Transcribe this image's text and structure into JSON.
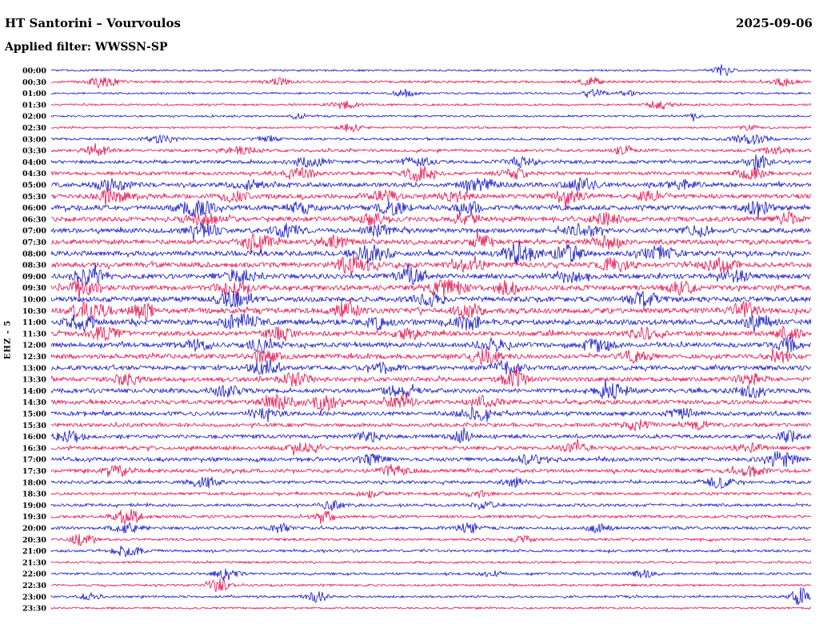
{
  "header": {
    "station_title": "HT Santorini – Vourvoulos",
    "date": "2025-09-06",
    "filter_label": "Applied filter: WWSSN-SP"
  },
  "axis": {
    "ylabel": "EHZ - 5"
  },
  "chart_data": {
    "type": "line",
    "subtype": "helicorder-seismogram",
    "title": "HT Santorini – Vourvoulos",
    "date": "2025-09-06",
    "filter": "WWSSN-SP",
    "row_interval_minutes": 30,
    "legend": "none",
    "grid": false,
    "colors": {
      "blue": "#1414c8",
      "red": "#e8104c",
      "label": "#000000"
    },
    "bursts_format": "[position_fraction_0to1, amplitude_px, sigma_px]",
    "rows": [
      {
        "time": "00:00",
        "color": "blue",
        "base": 1.1,
        "bursts": [
          [
            0.885,
            7,
            8
          ]
        ]
      },
      {
        "time": "00:30",
        "color": "red",
        "base": 1.4,
        "bursts": [
          [
            0.07,
            5,
            14
          ],
          [
            0.3,
            4,
            10
          ],
          [
            0.71,
            7,
            8
          ],
          [
            0.965,
            5,
            10
          ]
        ]
      },
      {
        "time": "01:00",
        "color": "blue",
        "base": 1.1,
        "bursts": [
          [
            0.465,
            5,
            9
          ],
          [
            0.715,
            4,
            10
          ],
          [
            0.76,
            3,
            8
          ]
        ]
      },
      {
        "time": "01:30",
        "color": "red",
        "base": 1.2,
        "bursts": [
          [
            0.385,
            5,
            12
          ],
          [
            0.8,
            5,
            10
          ]
        ]
      },
      {
        "time": "02:00",
        "color": "blue",
        "base": 1.1,
        "bursts": [
          [
            0.325,
            5,
            6
          ],
          [
            0.845,
            4,
            6
          ]
        ]
      },
      {
        "time": "02:30",
        "color": "red",
        "base": 1.1,
        "bursts": [
          [
            0.395,
            5,
            10
          ],
          [
            0.92,
            3,
            8
          ]
        ]
      },
      {
        "time": "03:00",
        "color": "blue",
        "base": 1.4,
        "bursts": [
          [
            0.145,
            4,
            14
          ],
          [
            0.285,
            4,
            9
          ],
          [
            0.92,
            6,
            16
          ]
        ]
      },
      {
        "time": "03:30",
        "color": "red",
        "base": 1.7,
        "bursts": [
          [
            0.06,
            6,
            12
          ],
          [
            0.25,
            4,
            14
          ],
          [
            0.755,
            6,
            9
          ],
          [
            0.95,
            4,
            10
          ]
        ]
      },
      {
        "time": "04:00",
        "color": "blue",
        "base": 2.0,
        "bursts": [
          [
            0.34,
            5,
            16
          ],
          [
            0.48,
            6,
            13
          ],
          [
            0.62,
            5,
            13
          ],
          [
            0.93,
            8,
            10
          ]
        ]
      },
      {
        "time": "04:30",
        "color": "red",
        "base": 2.0,
        "bursts": [
          [
            0.33,
            6,
            13
          ],
          [
            0.485,
            9,
            12
          ],
          [
            0.61,
            6,
            13
          ],
          [
            0.92,
            7,
            12
          ]
        ]
      },
      {
        "time": "05:00",
        "color": "blue",
        "base": 2.6,
        "bursts": [
          [
            0.08,
            6,
            16
          ],
          [
            0.26,
            5,
            13
          ],
          [
            0.565,
            7,
            15
          ],
          [
            0.7,
            7,
            13
          ],
          [
            0.83,
            5,
            13
          ]
        ]
      },
      {
        "time": "05:30",
        "color": "red",
        "base": 2.6,
        "bursts": [
          [
            0.08,
            7,
            15
          ],
          [
            0.24,
            5,
            13
          ],
          [
            0.44,
            6,
            13
          ],
          [
            0.53,
            7,
            12
          ],
          [
            0.68,
            8,
            13
          ],
          [
            0.79,
            6,
            12
          ]
        ]
      },
      {
        "time": "06:00",
        "color": "blue",
        "base": 2.8,
        "bursts": [
          [
            0.19,
            9,
            15
          ],
          [
            0.33,
            6,
            13
          ],
          [
            0.45,
            7,
            13
          ],
          [
            0.55,
            6,
            12
          ],
          [
            0.93,
            7,
            13
          ]
        ]
      },
      {
        "time": "06:30",
        "color": "red",
        "base": 2.8,
        "bursts": [
          [
            0.2,
            6,
            15
          ],
          [
            0.42,
            7,
            13
          ],
          [
            0.55,
            5,
            12
          ],
          [
            0.73,
            6,
            13
          ],
          [
            0.97,
            7,
            10
          ]
        ]
      },
      {
        "time": "07:00",
        "color": "blue",
        "base": 2.8,
        "bursts": [
          [
            0.2,
            8,
            13
          ],
          [
            0.31,
            7,
            13
          ],
          [
            0.43,
            6,
            12
          ],
          [
            0.7,
            7,
            13
          ],
          [
            0.85,
            6,
            12
          ]
        ]
      },
      {
        "time": "07:30",
        "color": "red",
        "base": 2.8,
        "bursts": [
          [
            0.27,
            9,
            13
          ],
          [
            0.37,
            7,
            13
          ],
          [
            0.57,
            6,
            12
          ],
          [
            0.73,
            7,
            13
          ]
        ]
      },
      {
        "time": "08:00",
        "color": "blue",
        "base": 3.0,
        "bursts": [
          [
            0.42,
            10,
            16
          ],
          [
            0.615,
            12,
            15
          ],
          [
            0.68,
            9,
            12
          ],
          [
            0.8,
            8,
            15
          ]
        ]
      },
      {
        "time": "08:30",
        "color": "red",
        "base": 3.0,
        "bursts": [
          [
            0.4,
            12,
            15
          ],
          [
            0.55,
            7,
            13
          ],
          [
            0.74,
            8,
            13
          ],
          [
            0.88,
            9,
            13
          ]
        ]
      },
      {
        "time": "09:00",
        "color": "blue",
        "base": 3.0,
        "bursts": [
          [
            0.05,
            8,
            15
          ],
          [
            0.25,
            7,
            13
          ],
          [
            0.47,
            9,
            13
          ],
          [
            0.68,
            7,
            13
          ],
          [
            0.9,
            7,
            12
          ]
        ]
      },
      {
        "time": "09:30",
        "color": "red",
        "base": 3.0,
        "bursts": [
          [
            0.04,
            8,
            13
          ],
          [
            0.24,
            8,
            13
          ],
          [
            0.52,
            10,
            15
          ],
          [
            0.6,
            8,
            12
          ],
          [
            0.83,
            7,
            12
          ]
        ]
      },
      {
        "time": "10:00",
        "color": "blue",
        "base": 3.0,
        "bursts": [
          [
            0.24,
            8,
            15
          ],
          [
            0.5,
            7,
            13
          ],
          [
            0.78,
            8,
            13
          ]
        ]
      },
      {
        "time": "10:30",
        "color": "red",
        "base": 3.2,
        "bursts": [
          [
            0.05,
            9,
            16
          ],
          [
            0.12,
            8,
            13
          ],
          [
            0.39,
            7,
            13
          ],
          [
            0.55,
            6,
            13
          ],
          [
            0.91,
            9,
            13
          ]
        ]
      },
      {
        "time": "11:00",
        "color": "blue",
        "base": 3.2,
        "bursts": [
          [
            0.04,
            8,
            13
          ],
          [
            0.25,
            9,
            15
          ],
          [
            0.43,
            7,
            12
          ],
          [
            0.55,
            8,
            13
          ],
          [
            0.93,
            7,
            12
          ]
        ]
      },
      {
        "time": "11:30",
        "color": "red",
        "base": 2.8,
        "bursts": [
          [
            0.07,
            7,
            13
          ],
          [
            0.3,
            6,
            13
          ],
          [
            0.47,
            6,
            12
          ],
          [
            0.78,
            6,
            13
          ],
          [
            0.97,
            8,
            10
          ]
        ]
      },
      {
        "time": "12:00",
        "color": "blue",
        "base": 2.8,
        "bursts": [
          [
            0.19,
            7,
            13
          ],
          [
            0.28,
            8,
            13
          ],
          [
            0.58,
            7,
            13
          ],
          [
            0.72,
            7,
            12
          ],
          [
            0.97,
            8,
            10
          ]
        ]
      },
      {
        "time": "12:30",
        "color": "red",
        "base": 2.8,
        "bursts": [
          [
            0.28,
            7,
            13
          ],
          [
            0.57,
            9,
            13
          ],
          [
            0.77,
            7,
            13
          ],
          [
            0.96,
            7,
            10
          ]
        ]
      },
      {
        "time": "13:00",
        "color": "blue",
        "base": 2.6,
        "bursts": [
          [
            0.28,
            7,
            13
          ],
          [
            0.44,
            6,
            12
          ],
          [
            0.6,
            8,
            13
          ]
        ]
      },
      {
        "time": "13:30",
        "color": "red",
        "base": 2.6,
        "bursts": [
          [
            0.1,
            6,
            13
          ],
          [
            0.32,
            7,
            13
          ],
          [
            0.61,
            8,
            13
          ],
          [
            0.92,
            6,
            12
          ]
        ]
      },
      {
        "time": "14:00",
        "color": "blue",
        "base": 2.6,
        "bursts": [
          [
            0.23,
            6,
            13
          ],
          [
            0.46,
            6,
            13
          ],
          [
            0.74,
            9,
            13
          ],
          [
            0.92,
            7,
            12
          ]
        ]
      },
      {
        "time": "14:30",
        "color": "red",
        "base": 2.6,
        "bursts": [
          [
            0.3,
            8,
            15
          ],
          [
            0.36,
            9,
            12
          ],
          [
            0.46,
            7,
            12
          ],
          [
            0.57,
            6,
            12
          ]
        ]
      },
      {
        "time": "15:00",
        "color": "blue",
        "base": 2.4,
        "bursts": [
          [
            0.28,
            6,
            13
          ],
          [
            0.56,
            7,
            13
          ],
          [
            0.83,
            6,
            12
          ]
        ]
      },
      {
        "time": "15:30",
        "color": "red",
        "base": 2.2,
        "bursts": [
          [
            0.77,
            6,
            12
          ],
          [
            0.85,
            5,
            10
          ]
        ]
      },
      {
        "time": "16:00",
        "color": "blue",
        "base": 2.2,
        "bursts": [
          [
            0.025,
            8,
            12
          ],
          [
            0.42,
            6,
            12
          ],
          [
            0.54,
            6,
            10
          ],
          [
            0.97,
            6,
            9
          ]
        ]
      },
      {
        "time": "16:30",
        "color": "red",
        "base": 2.2,
        "bursts": [
          [
            0.33,
            5,
            12
          ],
          [
            0.69,
            6,
            12
          ],
          [
            0.92,
            5,
            10
          ]
        ]
      },
      {
        "time": "17:00",
        "color": "blue",
        "base": 2.2,
        "bursts": [
          [
            0.42,
            6,
            12
          ],
          [
            0.63,
            5,
            12
          ],
          [
            0.96,
            9,
            13
          ]
        ]
      },
      {
        "time": "17:30",
        "color": "red",
        "base": 2.2,
        "bursts": [
          [
            0.09,
            6,
            12
          ],
          [
            0.45,
            6,
            12
          ],
          [
            0.92,
            6,
            13
          ]
        ]
      },
      {
        "time": "18:00",
        "color": "blue",
        "base": 1.9,
        "bursts": [
          [
            0.2,
            7,
            12
          ],
          [
            0.61,
            5,
            10
          ],
          [
            0.88,
            6,
            12
          ]
        ]
      },
      {
        "time": "18:30",
        "color": "red",
        "base": 1.7,
        "bursts": [
          [
            0.42,
            4,
            10
          ],
          [
            0.56,
            4,
            10
          ]
        ]
      },
      {
        "time": "19:00",
        "color": "blue",
        "base": 1.7,
        "bursts": [
          [
            0.37,
            5,
            10
          ],
          [
            0.57,
            4,
            10
          ]
        ]
      },
      {
        "time": "19:30",
        "color": "red",
        "base": 1.7,
        "bursts": [
          [
            0.1,
            9,
            12
          ],
          [
            0.36,
            6,
            10
          ]
        ]
      },
      {
        "time": "20:00",
        "color": "blue",
        "base": 1.7,
        "bursts": [
          [
            0.1,
            6,
            12
          ],
          [
            0.3,
            5,
            10
          ],
          [
            0.55,
            6,
            10
          ],
          [
            0.72,
            5,
            10
          ]
        ]
      },
      {
        "time": "20:30",
        "color": "red",
        "base": 1.5,
        "bursts": [
          [
            0.04,
            7,
            10
          ],
          [
            0.62,
            4,
            9
          ]
        ]
      },
      {
        "time": "21:00",
        "color": "blue",
        "base": 1.5,
        "bursts": [
          [
            0.1,
            7,
            12
          ]
        ]
      },
      {
        "time": "21:30",
        "color": "red",
        "base": 1.3,
        "bursts": []
      },
      {
        "time": "22:00",
        "color": "blue",
        "base": 1.4,
        "bursts": [
          [
            0.23,
            7,
            10
          ],
          [
            0.58,
            4,
            10
          ],
          [
            0.78,
            5,
            10
          ]
        ]
      },
      {
        "time": "22:30",
        "color": "red",
        "base": 1.3,
        "bursts": [
          [
            0.22,
            8,
            9
          ]
        ]
      },
      {
        "time": "23:00",
        "color": "blue",
        "base": 1.3,
        "bursts": [
          [
            0.05,
            4,
            9
          ],
          [
            0.35,
            6,
            9
          ],
          [
            0.985,
            12,
            7
          ]
        ]
      },
      {
        "time": "23:30",
        "color": "red",
        "base": 1.1,
        "bursts": []
      }
    ]
  }
}
